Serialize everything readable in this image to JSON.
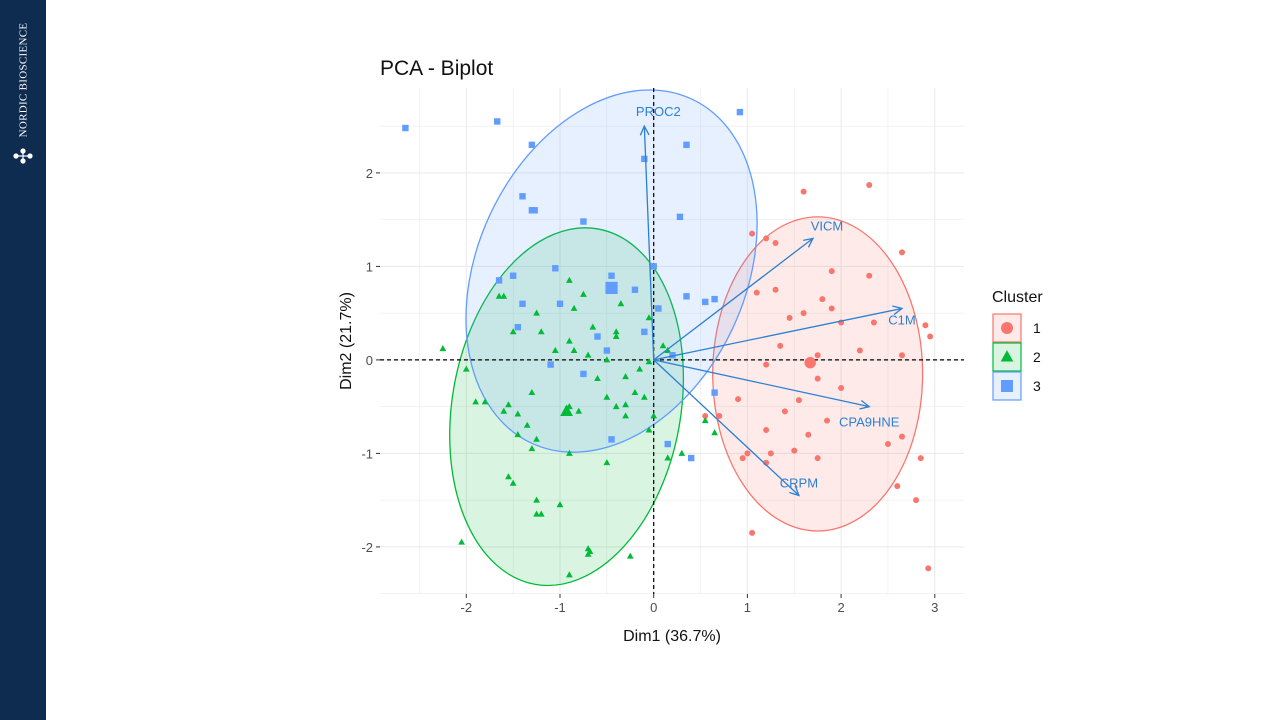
{
  "brand": {
    "name": "NORDIC BIOSCIENCE",
    "logo_icon": "molecule-logo-icon"
  },
  "colors": {
    "sidebar": "#0d2c4f",
    "cluster1": "#f8766d",
    "cluster2": "#00ba38",
    "cluster3": "#619cff",
    "arrows": "#2c7fd1"
  },
  "chart_data": {
    "type": "scatter",
    "title": "PCA - Biplot",
    "xlabel": "Dim1 (36.7%)",
    "ylabel": "Dim2 (21.7%)",
    "xlim": [
      -2.9,
      3.3
    ],
    "ylim": [
      -2.5,
      2.9
    ],
    "xticks": [
      -2,
      -1,
      0,
      1,
      2,
      3
    ],
    "yticks": [
      -2,
      -1,
      0,
      1,
      2
    ],
    "grid": true,
    "reference_lines": {
      "x": 0,
      "y": 0,
      "style": "dashed"
    },
    "legend": {
      "title": "Cluster",
      "position": "right",
      "entries": [
        "1",
        "2",
        "3"
      ]
    },
    "series": [
      {
        "name": "1",
        "shape": "circle",
        "color": "#f8766d",
        "points": [
          [
            1.6,
            1.8
          ],
          [
            2.3,
            1.87
          ],
          [
            1.3,
            1.25
          ],
          [
            1.2,
            1.3
          ],
          [
            1.05,
            1.35
          ],
          [
            2.65,
            1.15
          ],
          [
            1.9,
            0.95
          ],
          [
            2.3,
            0.9
          ],
          [
            1.3,
            0.75
          ],
          [
            1.1,
            0.72
          ],
          [
            1.8,
            0.65
          ],
          [
            1.9,
            0.55
          ],
          [
            1.6,
            0.5
          ],
          [
            1.45,
            0.45
          ],
          [
            2.0,
            0.4
          ],
          [
            2.35,
            0.4
          ],
          [
            2.9,
            0.37
          ],
          [
            2.95,
            0.25
          ],
          [
            1.35,
            0.15
          ],
          [
            2.2,
            0.1
          ],
          [
            2.65,
            0.05
          ],
          [
            1.75,
            0.05
          ],
          [
            1.2,
            -0.05
          ],
          [
            1.75,
            -0.2
          ],
          [
            2.0,
            -0.3
          ],
          [
            0.9,
            -0.42
          ],
          [
            1.55,
            -0.43
          ],
          [
            1.4,
            -0.55
          ],
          [
            0.7,
            -0.6
          ],
          [
            1.85,
            -0.65
          ],
          [
            0.55,
            -0.6
          ],
          [
            1.2,
            -0.75
          ],
          [
            1.65,
            -0.8
          ],
          [
            2.65,
            -0.82
          ],
          [
            2.5,
            -0.9
          ],
          [
            1.0,
            -1.0
          ],
          [
            1.25,
            -1.0
          ],
          [
            1.5,
            -0.97
          ],
          [
            0.95,
            -1.05
          ],
          [
            1.75,
            -1.05
          ],
          [
            2.85,
            -1.05
          ],
          [
            1.2,
            -1.1
          ],
          [
            2.6,
            -1.35
          ],
          [
            2.8,
            -1.5
          ],
          [
            1.05,
            -1.85
          ],
          [
            2.93,
            -2.23
          ]
        ],
        "centroid": [
          1.67,
          -0.03
        ]
      },
      {
        "name": "2",
        "shape": "triangle",
        "color": "#00ba38",
        "points": [
          [
            -1.65,
            0.68
          ],
          [
            -1.6,
            0.68
          ],
          [
            -0.9,
            0.85
          ],
          [
            -0.75,
            0.7
          ],
          [
            -1.25,
            0.5
          ],
          [
            -0.85,
            0.55
          ],
          [
            -0.65,
            0.35
          ],
          [
            -1.5,
            0.3
          ],
          [
            -1.2,
            0.3
          ],
          [
            -0.4,
            0.3
          ],
          [
            -0.05,
            0.45
          ],
          [
            -0.35,
            0.6
          ],
          [
            -0.4,
            0.25
          ],
          [
            -0.9,
            0.2
          ],
          [
            0.1,
            0.15
          ],
          [
            -2.25,
            0.12
          ],
          [
            -1.05,
            0.1
          ],
          [
            -0.85,
            0.1
          ],
          [
            -0.7,
            0.05
          ],
          [
            -0.5,
            0.0
          ],
          [
            -0.05,
            -0.02
          ],
          [
            0.15,
            0.1
          ],
          [
            -2.0,
            -0.1
          ],
          [
            -0.6,
            -0.2
          ],
          [
            -0.3,
            -0.18
          ],
          [
            -0.15,
            -0.1
          ],
          [
            -1.9,
            -0.45
          ],
          [
            -1.8,
            -0.45
          ],
          [
            -0.2,
            -0.35
          ],
          [
            -1.3,
            -0.35
          ],
          [
            -0.5,
            -0.4
          ],
          [
            -0.1,
            -0.4
          ],
          [
            -1.55,
            -0.48
          ],
          [
            -0.3,
            -0.48
          ],
          [
            -0.9,
            -0.5
          ],
          [
            -0.4,
            -0.5
          ],
          [
            0.0,
            -0.6
          ],
          [
            -0.3,
            -0.6
          ],
          [
            -1.6,
            -0.55
          ],
          [
            -1.45,
            -0.58
          ],
          [
            -0.8,
            -0.55
          ],
          [
            -1.35,
            -0.7
          ],
          [
            -0.05,
            -0.75
          ],
          [
            -1.45,
            -0.8
          ],
          [
            -1.25,
            -0.85
          ],
          [
            -1.3,
            -0.95
          ],
          [
            -0.9,
            -1.0
          ],
          [
            0.55,
            -0.65
          ],
          [
            0.65,
            -0.78
          ],
          [
            -0.5,
            -1.1
          ],
          [
            0.3,
            -1.0
          ],
          [
            0.15,
            -1.05
          ],
          [
            -1.55,
            -1.25
          ],
          [
            -1.5,
            -1.32
          ],
          [
            -1.25,
            -1.5
          ],
          [
            -1.0,
            -1.55
          ],
          [
            -1.25,
            -1.65
          ],
          [
            -1.2,
            -1.65
          ],
          [
            -2.05,
            -1.95
          ],
          [
            -0.7,
            -2.02
          ],
          [
            -0.68,
            -2.05
          ],
          [
            -0.7,
            -2.08
          ],
          [
            -0.25,
            -2.1
          ],
          [
            -0.9,
            -2.3
          ]
        ],
        "centroid": [
          -0.93,
          -0.55
        ]
      },
      {
        "name": "3",
        "shape": "square",
        "color": "#619cff",
        "points": [
          [
            -2.65,
            2.48
          ],
          [
            -1.67,
            2.55
          ],
          [
            0.92,
            2.65
          ],
          [
            -1.3,
            2.3
          ],
          [
            0.35,
            2.3
          ],
          [
            -1.4,
            1.75
          ],
          [
            -1.3,
            1.6
          ],
          [
            -1.27,
            1.6
          ],
          [
            -0.75,
            1.48
          ],
          [
            0.28,
            1.53
          ],
          [
            -0.1,
            2.15
          ],
          [
            -1.5,
            0.9
          ],
          [
            -1.65,
            0.85
          ],
          [
            -1.05,
            0.98
          ],
          [
            -0.45,
            0.9
          ],
          [
            -0.2,
            0.75
          ],
          [
            0.35,
            0.68
          ],
          [
            0.55,
            0.62
          ],
          [
            0.65,
            0.65
          ],
          [
            -1.4,
            0.6
          ],
          [
            -1.0,
            0.6
          ],
          [
            0.05,
            0.55
          ],
          [
            -1.45,
            0.35
          ],
          [
            -0.1,
            0.3
          ],
          [
            -0.6,
            0.25
          ],
          [
            -0.5,
            0.1
          ],
          [
            0.2,
            0.05
          ],
          [
            -1.1,
            -0.05
          ],
          [
            -0.75,
            -0.15
          ],
          [
            0.65,
            -0.35
          ],
          [
            -0.45,
            -0.85
          ],
          [
            0.15,
            -0.9
          ],
          [
            0.4,
            -1.05
          ],
          [
            0.0,
            1.0
          ]
        ],
        "centroid": [
          -0.45,
          0.77
        ]
      }
    ],
    "ellipses": [
      {
        "cluster": "1",
        "center": [
          1.75,
          -0.15
        ],
        "rx": 1.12,
        "ry": 1.68,
        "angle": 0
      },
      {
        "cluster": "2",
        "center": [
          -0.93,
          -0.5
        ],
        "rx": 1.22,
        "ry": 1.93,
        "angle": 10
      },
      {
        "cluster": "3",
        "center": [
          -0.45,
          0.95
        ],
        "rx": 1.43,
        "ry": 2.03,
        "angle": 25
      }
    ],
    "loadings": [
      {
        "label": "PROC2",
        "x": -0.1,
        "y": 2.5
      },
      {
        "label": "VICM",
        "x": 1.7,
        "y": 1.3
      },
      {
        "label": "C1M",
        "x": 2.65,
        "y": 0.55
      },
      {
        "label": "CPA9HNE",
        "x": 2.3,
        "y": -0.5
      },
      {
        "label": "CRPM",
        "x": 1.55,
        "y": -1.45
      }
    ]
  }
}
